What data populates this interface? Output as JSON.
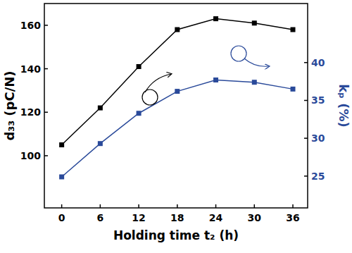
{
  "chart_data": {
    "type": "line",
    "x_label": "Holding time t₂ (h)",
    "y_label": "d₃₃ (pC/N)",
    "y2_label": "kₚ (%)",
    "x": [
      0,
      6,
      12,
      18,
      24,
      30,
      36
    ],
    "xlim": [
      -2.7,
      38.3
    ],
    "xticks": [
      0,
      6,
      12,
      18,
      24,
      30,
      36
    ],
    "ylim": [
      76,
      170
    ],
    "yticks": [
      100,
      120,
      140,
      160
    ],
    "y2lim": [
      20.8,
      47.8
    ],
    "y2ticks": [
      25,
      30,
      35,
      40
    ],
    "grid": false,
    "series": [
      {
        "name": "d₃₃",
        "color": "#000000",
        "marker": "square",
        "values": [
          105,
          122,
          141,
          158,
          163,
          161,
          158
        ]
      },
      {
        "name": "kₚ",
        "color": "#2a4a9a",
        "marker": "square",
        "axis": "y2",
        "values": [
          24.9,
          29.3,
          33.3,
          36.2,
          37.7,
          37.4,
          36.5
        ]
      }
    ]
  }
}
